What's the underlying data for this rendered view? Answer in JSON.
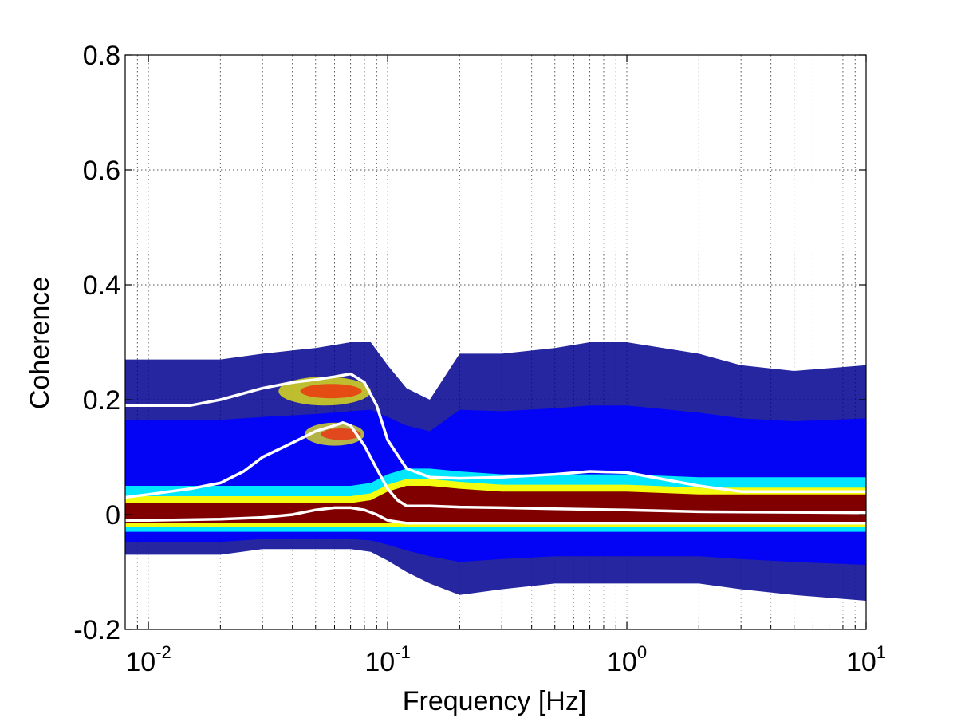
{
  "chart_data": {
    "type": "heatmap",
    "title": "",
    "xlabel": "Frequency [Hz]",
    "ylabel": "Coherence",
    "xscale": "log",
    "xlim": [
      0.008,
      10
    ],
    "ylim": [
      -0.2,
      0.8
    ],
    "grid": true,
    "legend": "none",
    "xticks": [
      {
        "value": 0.01,
        "base": "10",
        "exp": "-2"
      },
      {
        "value": 0.1,
        "base": "10",
        "exp": "-1"
      },
      {
        "value": 1,
        "base": "10",
        "exp": "0"
      },
      {
        "value": 10,
        "base": "10",
        "exp": "1"
      }
    ],
    "yticks": [
      {
        "value": -0.2,
        "label": "-0.2"
      },
      {
        "value": 0,
        "label": "0"
      },
      {
        "value": 0.2,
        "label": "0.2"
      },
      {
        "value": 0.4,
        "label": "0.4"
      },
      {
        "value": 0.6,
        "label": "0.6"
      },
      {
        "value": 0.8,
        "label": "0.8"
      }
    ],
    "colormap": [
      "#00008f",
      "#0000ff",
      "#00ffff",
      "#ffff00",
      "#ff0000",
      "#800000"
    ],
    "density": {
      "x": [
        0.008,
        0.01,
        0.02,
        0.03,
        0.05,
        0.07,
        0.085,
        0.1,
        0.12,
        0.15,
        0.2,
        0.3,
        0.5,
        0.7,
        1,
        2,
        3,
        5,
        10
      ],
      "lower": [
        -0.07,
        -0.07,
        -0.07,
        -0.06,
        -0.06,
        -0.06,
        -0.065,
        -0.08,
        -0.1,
        -0.12,
        -0.14,
        -0.13,
        -0.12,
        -0.12,
        -0.12,
        -0.12,
        -0.13,
        -0.14,
        -0.15
      ],
      "upper": [
        0.27,
        0.27,
        0.27,
        0.28,
        0.29,
        0.3,
        0.3,
        0.26,
        0.22,
        0.2,
        0.28,
        0.28,
        0.29,
        0.3,
        0.3,
        0.28,
        0.26,
        0.25,
        0.26
      ],
      "core_lower": [
        -0.015,
        -0.015,
        -0.015,
        -0.015,
        -0.015,
        -0.015,
        -0.015,
        -0.015,
        -0.015,
        -0.015,
        -0.015,
        -0.015,
        -0.015,
        -0.015,
        -0.015,
        -0.015,
        -0.015,
        -0.015,
        -0.015
      ],
      "core_upper": [
        0.02,
        0.02,
        0.02,
        0.02,
        0.02,
        0.02,
        0.025,
        0.04,
        0.05,
        0.05,
        0.045,
        0.04,
        0.04,
        0.04,
        0.04,
        0.035,
        0.035,
        0.035,
        0.035
      ],
      "hot": [
        {
          "x": [
            0.035,
            0.085
          ],
          "y": [
            0.19,
            0.24
          ]
        },
        {
          "x": [
            0.045,
            0.08
          ],
          "y": [
            0.12,
            0.16
          ]
        }
      ]
    },
    "series": [
      {
        "x": [
          0.008,
          0.01,
          0.015,
          0.02,
          0.03,
          0.04,
          0.05,
          0.06,
          0.07,
          0.08,
          0.09,
          0.1,
          0.12,
          0.15,
          0.2,
          0.3,
          0.5,
          0.7,
          1,
          2,
          3,
          5,
          10
        ],
        "y": [
          0.19,
          0.19,
          0.19,
          0.2,
          0.22,
          0.23,
          0.235,
          0.24,
          0.245,
          0.23,
          0.19,
          0.13,
          0.08,
          0.065,
          0.063,
          0.065,
          0.07,
          0.075,
          0.073,
          0.05,
          0.04,
          0.04,
          0.04
        ]
      },
      {
        "x": [
          0.008,
          0.01,
          0.015,
          0.02,
          0.025,
          0.03,
          0.04,
          0.05,
          0.06,
          0.065,
          0.07,
          0.08,
          0.09,
          0.1,
          0.11,
          0.12,
          0.15,
          0.2,
          0.3,
          0.5,
          1,
          2,
          5,
          10
        ],
        "y": [
          0.03,
          0.035,
          0.045,
          0.055,
          0.075,
          0.1,
          0.125,
          0.145,
          0.155,
          0.16,
          0.155,
          0.12,
          0.08,
          0.045,
          0.025,
          0.015,
          0.015,
          0.013,
          0.012,
          0.01,
          0.008,
          0.005,
          0.004,
          0.003
        ]
      },
      {
        "x": [
          0.008,
          0.01,
          0.02,
          0.03,
          0.04,
          0.05,
          0.06,
          0.07,
          0.08,
          0.09,
          0.1,
          0.12,
          0.15,
          0.2,
          0.5,
          1,
          2,
          5,
          10
        ],
        "y": [
          -0.01,
          -0.01,
          -0.008,
          -0.005,
          0.0,
          0.008,
          0.012,
          0.012,
          0.008,
          0.0,
          -0.01,
          -0.015,
          -0.015,
          -0.015,
          -0.015,
          -0.015,
          -0.015,
          -0.015,
          -0.015
        ]
      }
    ]
  }
}
